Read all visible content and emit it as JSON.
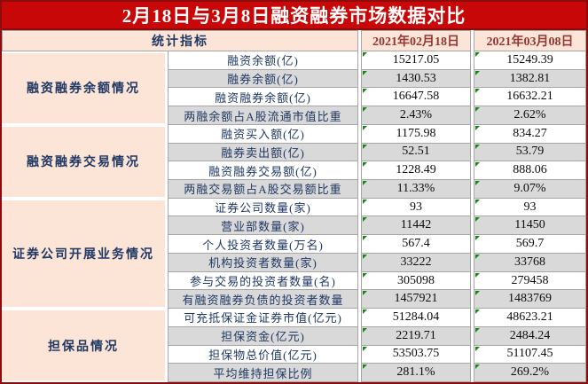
{
  "title": "2月18日与3月8日融资融券市场数据对比",
  "header": {
    "indicator": "统计指标",
    "date1": "2021年02月18日",
    "date2": "2021年03月08日"
  },
  "sections": [
    {
      "name": "融资融券余额情况",
      "rows": [
        {
          "label": "融资余额(亿)",
          "v1": "15217.05",
          "v2": "15249.39"
        },
        {
          "label": "融券余额(亿)",
          "v1": "1430.53",
          "v2": "1382.81"
        },
        {
          "label": "融资融券余额(亿)",
          "v1": "16647.58",
          "v2": "16632.21"
        },
        {
          "label": "两融余额占A股流通市值比重",
          "v1": "2.43%",
          "v2": "2.62%"
        }
      ]
    },
    {
      "name": "融资融券交易情况",
      "rows": [
        {
          "label": "融资买入额(亿)",
          "v1": "1175.98",
          "v2": "834.27"
        },
        {
          "label": "融券卖出额(亿)",
          "v1": "52.51",
          "v2": "53.79"
        },
        {
          "label": "融资融券交易额(亿)",
          "v1": "1228.49",
          "v2": "888.06"
        },
        {
          "label": "两融交易额占A股交易额比重",
          "v1": "11.33%",
          "v2": "9.07%"
        }
      ]
    },
    {
      "name": "证券公司开展业务情况",
      "rows": [
        {
          "label": "证券公司数量(家)",
          "v1": "93",
          "v2": "93"
        },
        {
          "label": "营业部数量(家)",
          "v1": "11442",
          "v2": "11450"
        },
        {
          "label": "个人投资者数量(万名)",
          "v1": "567.4",
          "v2": "569.7"
        },
        {
          "label": "机构投资者数量(家)",
          "v1": "33222",
          "v2": "33768"
        },
        {
          "label": "参与交易的投资者数量(名)",
          "v1": "305098",
          "v2": "279458"
        },
        {
          "label": "有融资融券负债的投资者数量",
          "v1": "1457921",
          "v2": "1483769"
        }
      ]
    },
    {
      "name": "担保品情况",
      "rows": [
        {
          "label": "可充抵保证金证券市值(亿元)",
          "v1": "51284.04",
          "v2": "48623.21"
        },
        {
          "label": "担保资金(亿元)",
          "v1": "2219.71",
          "v2": "2484.24"
        },
        {
          "label": "担保物总价值(亿元)",
          "v1": "53503.75",
          "v2": "51107.45"
        },
        {
          "label": "平均维持担保比例",
          "v1": "281.1%",
          "v2": "269.2%"
        }
      ]
    }
  ],
  "chart_data": {
    "type": "table",
    "title": "2月18日与3月8日融资融券市场数据对比",
    "columns": [
      "统计指标",
      "2021年02月18日",
      "2021年03月08日"
    ],
    "rows": [
      {
        "group": "融资融券余额情况",
        "indicator": "融资余额(亿)",
        "feb18": 15217.05,
        "mar08": 15249.39
      },
      {
        "group": "融资融券余额情况",
        "indicator": "融券余额(亿)",
        "feb18": 1430.53,
        "mar08": 1382.81
      },
      {
        "group": "融资融券余额情况",
        "indicator": "融资融券余额(亿)",
        "feb18": 16647.58,
        "mar08": 16632.21
      },
      {
        "group": "融资融券余额情况",
        "indicator": "两融余额占A股流通市值比重",
        "feb18": "2.43%",
        "mar08": "2.62%"
      },
      {
        "group": "融资融券交易情况",
        "indicator": "融资买入额(亿)",
        "feb18": 1175.98,
        "mar08": 834.27
      },
      {
        "group": "融资融券交易情况",
        "indicator": "融券卖出额(亿)",
        "feb18": 52.51,
        "mar08": 53.79
      },
      {
        "group": "融资融券交易情况",
        "indicator": "融资融券交易额(亿)",
        "feb18": 1228.49,
        "mar08": 888.06
      },
      {
        "group": "融资融券交易情况",
        "indicator": "两融交易额占A股交易额比重",
        "feb18": "11.33%",
        "mar08": "9.07%"
      },
      {
        "group": "证券公司开展业务情况",
        "indicator": "证券公司数量(家)",
        "feb18": 93,
        "mar08": 93
      },
      {
        "group": "证券公司开展业务情况",
        "indicator": "营业部数量(家)",
        "feb18": 11442,
        "mar08": 11450
      },
      {
        "group": "证券公司开展业务情况",
        "indicator": "个人投资者数量(万名)",
        "feb18": 567.4,
        "mar08": 569.7
      },
      {
        "group": "证券公司开展业务情况",
        "indicator": "机构投资者数量(家)",
        "feb18": 33222,
        "mar08": 33768
      },
      {
        "group": "证券公司开展业务情况",
        "indicator": "参与交易的投资者数量(名)",
        "feb18": 305098,
        "mar08": 279458
      },
      {
        "group": "证券公司开展业务情况",
        "indicator": "有融资融券负债的投资者数量",
        "feb18": 1457921,
        "mar08": 1483769
      },
      {
        "group": "担保品情况",
        "indicator": "可充抵保证金证券市值(亿元)",
        "feb18": 51284.04,
        "mar08": 48623.21
      },
      {
        "group": "担保品情况",
        "indicator": "担保资金(亿元)",
        "feb18": 2219.71,
        "mar08": 2484.24
      },
      {
        "group": "担保品情况",
        "indicator": "担保物总价值(亿元)",
        "feb18": 53503.75,
        "mar08": 51107.45
      },
      {
        "group": "担保品情况",
        "indicator": "平均维持担保比例",
        "feb18": "281.1%",
        "mar08": "269.2%"
      }
    ]
  },
  "icons": {
    "cell_corner_flag": "green-corner-triangle"
  },
  "colors": {
    "title_bg": "#c80808",
    "outer_border": "#8e0b0b",
    "header_bg": "#fce4d6",
    "section_bg": "#fce4d6",
    "alt_row_bg": "#d9d9d9",
    "cell_border": "#a6a6a6",
    "label_text": "#1f3864",
    "date_text": "#943634",
    "value_text": "#0d0d0d",
    "flag_green": "#128a12",
    "title_text": "#ffffff"
  }
}
